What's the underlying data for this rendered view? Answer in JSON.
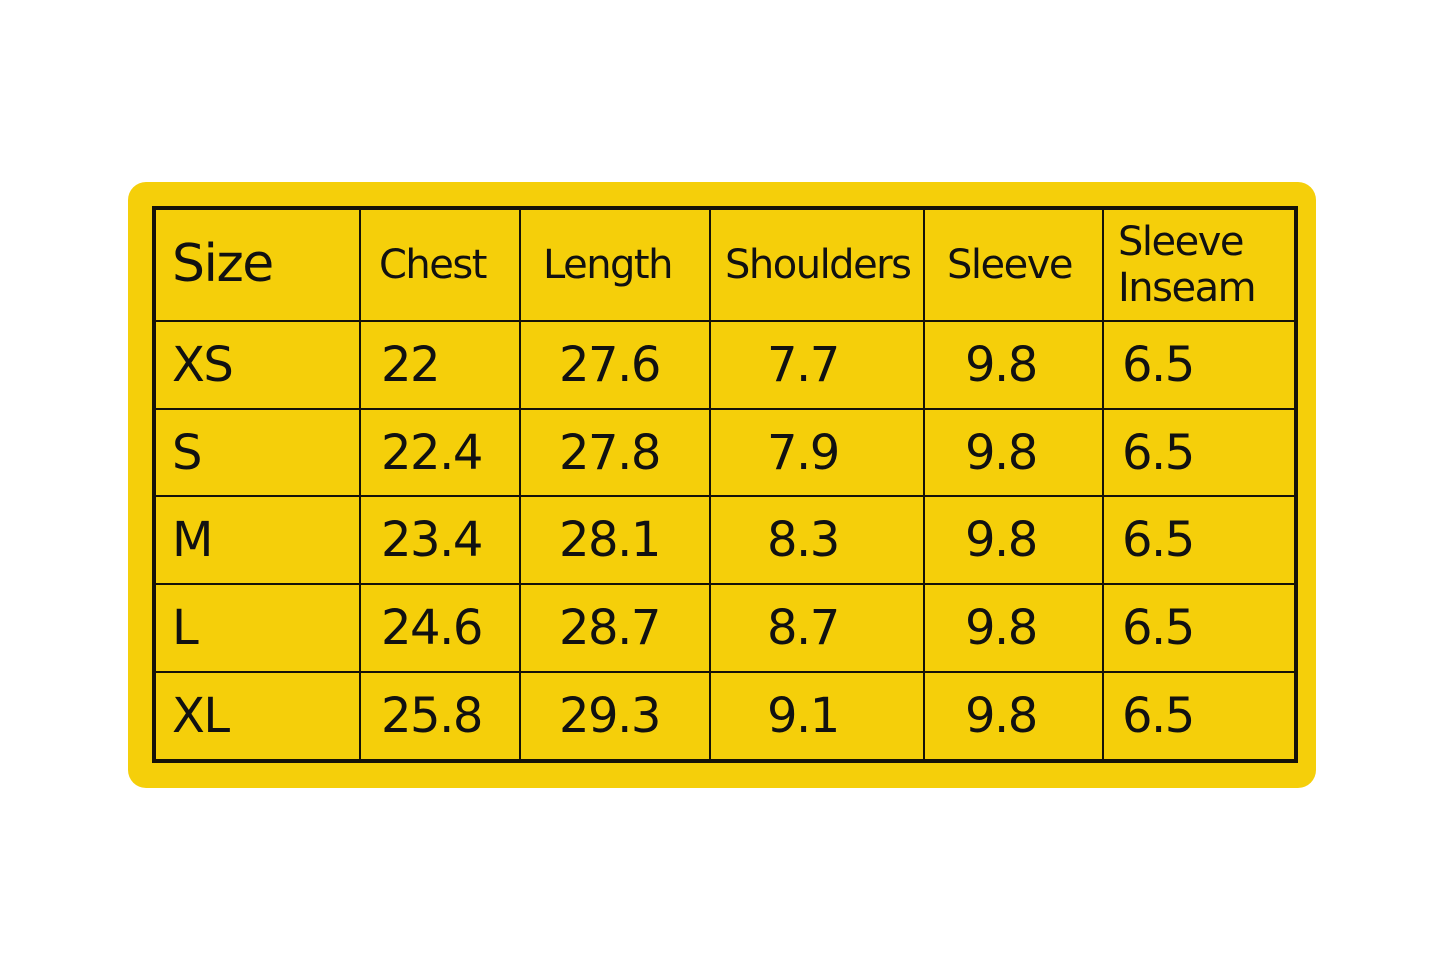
{
  "colors": {
    "background": "#f5cf0a",
    "lines": "#151208"
  },
  "headers": [
    "Size",
    "Chest",
    "Length",
    "Shoulders",
    "Sleeve",
    "Sleeve Inseam"
  ],
  "header_lines": {
    "sleeve_inseam_1": "Sleeve",
    "sleeve_inseam_2": "Inseam"
  },
  "rows": [
    [
      "XS",
      "22",
      "27.6",
      "7.7",
      "9.8",
      "6.5"
    ],
    [
      "S",
      "22.4",
      "27.8",
      "7.9",
      "9.8",
      "6.5"
    ],
    [
      "M",
      "23.4",
      "28.1",
      "8.3",
      "9.8",
      "6.5"
    ],
    [
      "L",
      "24.6",
      "28.7",
      "8.7",
      "9.8",
      "6.5"
    ],
    [
      "XL",
      "25.8",
      "29.3",
      "9.1",
      "9.8",
      "6.5"
    ]
  ]
}
